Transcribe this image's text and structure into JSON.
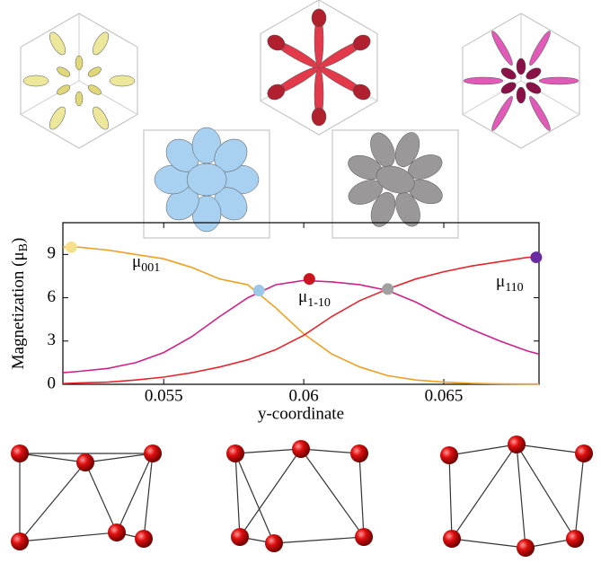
{
  "chart_data": {
    "type": "line",
    "x_label": "y-coordinate",
    "y_label": {
      "text": "Magnetization (μ",
      "sub": "B",
      "end": ")"
    },
    "xlim": [
      0.0514,
      0.0684
    ],
    "xticks": [
      0.055,
      0.06,
      0.065
    ],
    "ylim": [
      0,
      11.2
    ],
    "yticks": [
      0,
      3,
      6,
      9
    ],
    "x": [
      0.0514,
      0.052,
      0.053,
      0.054,
      0.055,
      0.056,
      0.057,
      0.058,
      0.059,
      0.06,
      0.061,
      0.062,
      0.063,
      0.064,
      0.065,
      0.066,
      0.067,
      0.068,
      0.0684
    ],
    "series": [
      {
        "color": "#f0a020",
        "values": [
          9.5,
          9.5,
          9.3,
          9.0,
          8.7,
          8.1,
          7.3,
          6.9,
          5.3,
          3.5,
          2.1,
          1.2,
          0.6,
          0.3,
          0.15,
          0.07,
          0.03,
          0.02,
          0.02
        ]
      },
      {
        "color": "#d0208a",
        "values": [
          0.8,
          0.9,
          1.1,
          1.5,
          2.2,
          3.3,
          4.7,
          6.0,
          6.9,
          7.2,
          7.1,
          6.9,
          6.5,
          5.7,
          4.7,
          3.8,
          3.0,
          2.3,
          2.1
        ]
      },
      {
        "color": "#e8242c",
        "values": [
          0.05,
          0.1,
          0.15,
          0.3,
          0.5,
          0.8,
          1.2,
          1.7,
          2.4,
          3.4,
          4.7,
          5.8,
          6.6,
          7.3,
          7.8,
          8.2,
          8.5,
          8.8,
          8.8
        ]
      }
    ],
    "markers": [
      {
        "x": 0.0517,
        "y": 9.5,
        "color": "#f8e08a"
      },
      {
        "x": 0.0584,
        "y": 6.5,
        "color": "#9cc8e8"
      },
      {
        "x": 0.0602,
        "y": 7.3,
        "color": "#c8141e"
      },
      {
        "x": 0.063,
        "y": 6.6,
        "color": "#a0a0a0"
      },
      {
        "x": 0.0683,
        "y": 8.8,
        "color": "#6a2aa0"
      }
    ],
    "annotations": [
      {
        "text": "μ",
        "sub": "001"
      },
      {
        "text": "μ",
        "sub": "1-10"
      },
      {
        "text": "μ",
        "sub": "110"
      }
    ]
  }
}
